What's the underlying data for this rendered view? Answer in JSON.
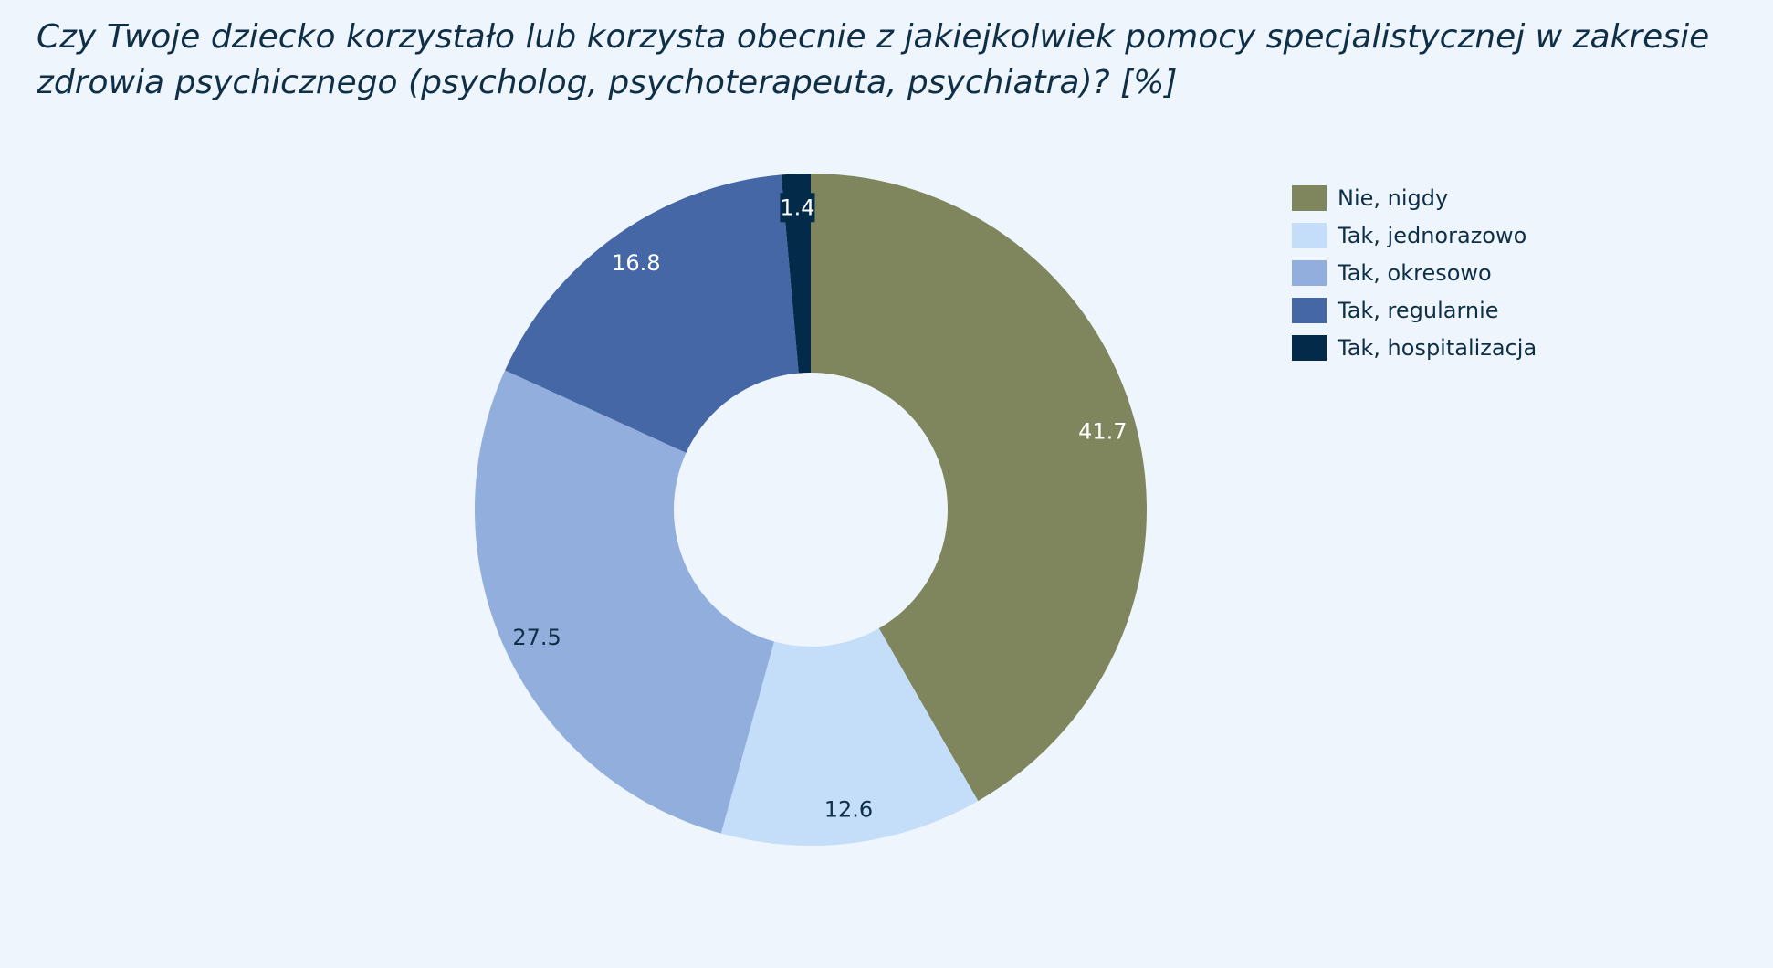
{
  "chart_data": {
    "type": "pie",
    "title": "Czy Twoje dziecko korzystało lub korzysta obecnie z jakiejkolwiek pomocy specjalistycznej w zakresie zdrowia psychicznego (psycholog, psychoterapeuta, psychiatra)? [%]",
    "donut": true,
    "categories": [
      "Nie, nigdy",
      "Tak, jednorazowo",
      "Tak, okresowo",
      "Tak, regularnie",
      "Tak, hospitalizacja"
    ],
    "values": [
      41.7,
      12.6,
      27.5,
      16.8,
      1.4
    ],
    "value_labels": [
      "41.7",
      "12.6",
      "27.5",
      "16.8",
      "1.4"
    ],
    "colors": [
      "#7f865e",
      "#c4ddf8",
      "#91aedd",
      "#4567a5",
      "#042a4a"
    ],
    "label_colors": [
      "#ffffff",
      "#0f2f47",
      "#0f2f47",
      "#ffffff",
      "#ffffff"
    ],
    "legend_position": "right"
  }
}
